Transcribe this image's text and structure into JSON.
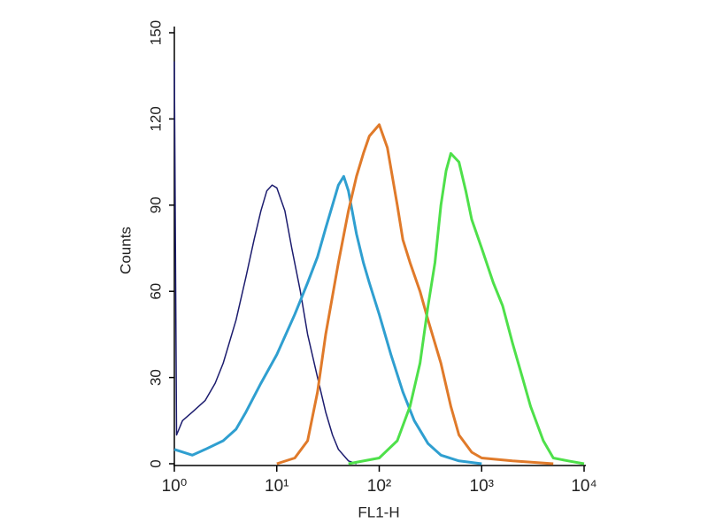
{
  "chart_data": {
    "type": "line",
    "xlabel": "FL1-H",
    "ylabel": "Counts",
    "xscale": "log",
    "xlim": [
      1,
      10000
    ],
    "ylim": [
      0,
      150
    ],
    "xticks": [
      {
        "value": 1,
        "label": "10⁰"
      },
      {
        "value": 10,
        "label": "10¹"
      },
      {
        "value": 100,
        "label": "10²"
      },
      {
        "value": 1000,
        "label": "10³"
      },
      {
        "value": 10000,
        "label": "10⁴"
      }
    ],
    "yticks": [
      0,
      30,
      60,
      90,
      120,
      150
    ],
    "series": [
      {
        "color": "#1c1c6e",
        "x": [
          1,
          1.05,
          1.2,
          1.5,
          2,
          2.5,
          3,
          4,
          5,
          6,
          7,
          8,
          9,
          10,
          12,
          14,
          17,
          20,
          25,
          30,
          35,
          40,
          50,
          60
        ],
        "values": [
          140,
          10,
          15,
          18,
          22,
          28,
          35,
          50,
          65,
          78,
          88,
          95,
          97,
          96,
          88,
          75,
          60,
          45,
          30,
          18,
          10,
          5,
          1,
          0
        ]
      },
      {
        "color": "#2f9fd0",
        "x": [
          1,
          1.5,
          2,
          3,
          4,
          5,
          7,
          10,
          15,
          20,
          25,
          30,
          35,
          40,
          45,
          50,
          60,
          70,
          80,
          100,
          130,
          170,
          220,
          300,
          400,
          600,
          1000
        ],
        "values": [
          5,
          3,
          5,
          8,
          12,
          18,
          28,
          38,
          52,
          63,
          72,
          82,
          90,
          97,
          100,
          95,
          80,
          70,
          63,
          52,
          38,
          25,
          15,
          7,
          3,
          1,
          0
        ]
      },
      {
        "color": "#e07a2a",
        "x": [
          10,
          15,
          20,
          25,
          30,
          40,
          50,
          60,
          70,
          80,
          100,
          120,
          150,
          170,
          200,
          250,
          300,
          400,
          500,
          600,
          800,
          1000,
          2000,
          5000
        ],
        "values": [
          0,
          2,
          8,
          25,
          45,
          70,
          88,
          100,
          108,
          114,
          118,
          110,
          90,
          78,
          70,
          60,
          50,
          35,
          20,
          10,
          4,
          2,
          1,
          0
        ]
      },
      {
        "color": "#4ee04a",
        "x": [
          50,
          100,
          150,
          200,
          250,
          300,
          350,
          400,
          450,
          500,
          600,
          700,
          800,
          1000,
          1300,
          1600,
          2000,
          2500,
          3000,
          4000,
          5000,
          7000,
          10000
        ],
        "values": [
          0,
          2,
          8,
          20,
          35,
          55,
          70,
          90,
          102,
          108,
          105,
          95,
          85,
          75,
          63,
          55,
          42,
          30,
          20,
          8,
          2,
          1,
          0
        ]
      }
    ]
  }
}
